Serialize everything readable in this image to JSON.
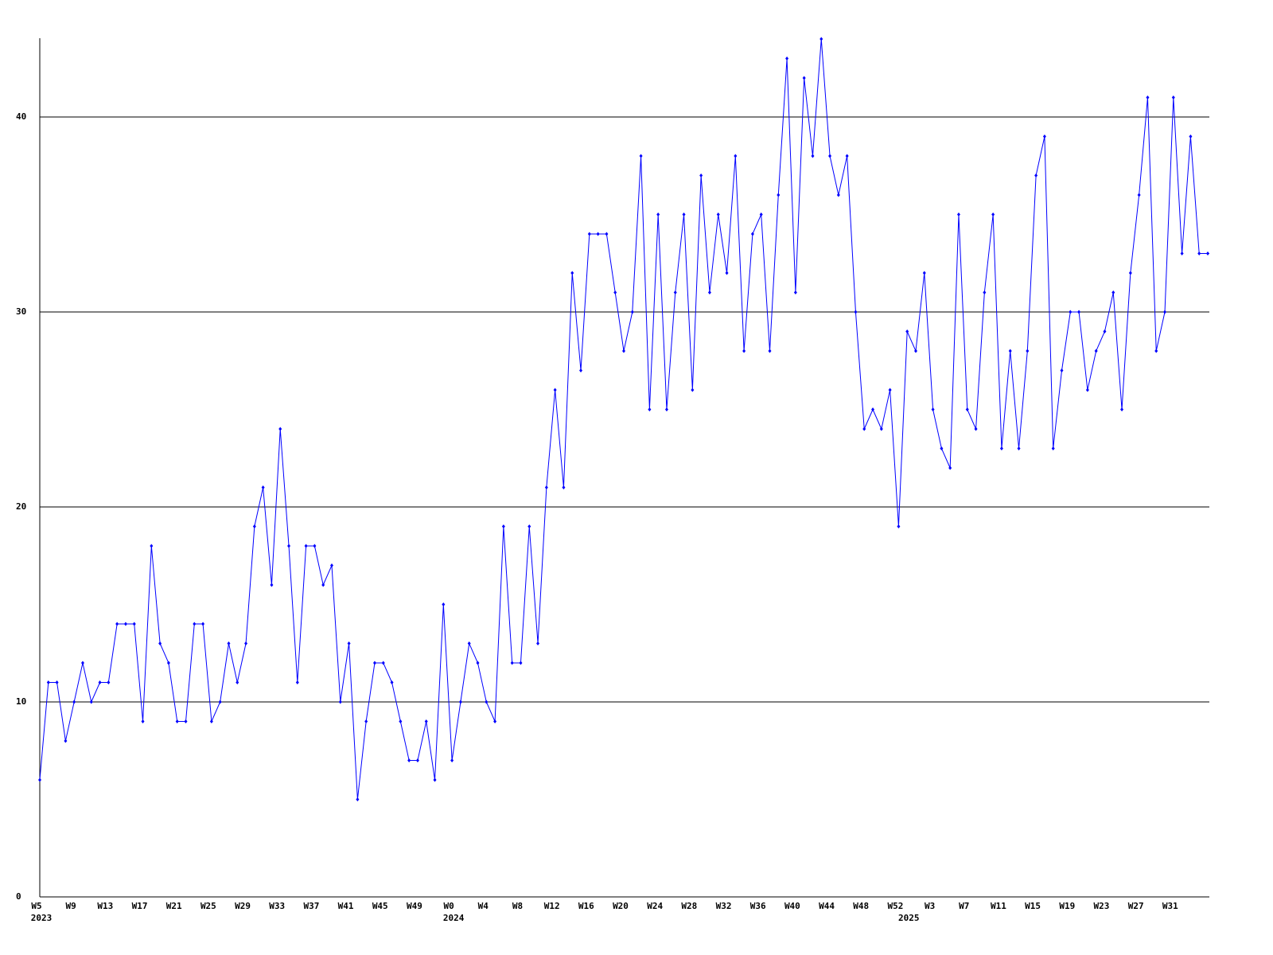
{
  "chart_data": {
    "type": "line",
    "categories": [
      "W5",
      null,
      null,
      null,
      "W9",
      null,
      null,
      null,
      "W13",
      null,
      null,
      null,
      "W17",
      null,
      null,
      null,
      "W21",
      null,
      null,
      null,
      "W25",
      null,
      null,
      null,
      "W29",
      null,
      null,
      null,
      "W33",
      null,
      null,
      null,
      "W37",
      null,
      null,
      null,
      "W41",
      null,
      null,
      null,
      "W45",
      null,
      null,
      null,
      "W49",
      null,
      null,
      null,
      "W0",
      null,
      null,
      null,
      "W4",
      null,
      null,
      null,
      "W8",
      null,
      null,
      null,
      "W12",
      null,
      null,
      null,
      "W16",
      null,
      null,
      null,
      "W20",
      null,
      null,
      null,
      "W24",
      null,
      null,
      null,
      "W28",
      null,
      null,
      null,
      "W32",
      null,
      null,
      null,
      "W36",
      null,
      null,
      null,
      "W40",
      null,
      null,
      null,
      "W44",
      null,
      null,
      null,
      "W48",
      null,
      null,
      null,
      "W52",
      null,
      null,
      null,
      "W3",
      null,
      null,
      null,
      "W7",
      null,
      null,
      null,
      "W11",
      null,
      null,
      null,
      "W15",
      null,
      null,
      null,
      "W19",
      null,
      null,
      null,
      "W23",
      null,
      null,
      null,
      "W27",
      null,
      null,
      null,
      "W31",
      null,
      null,
      null,
      null
    ],
    "x_year_labels": [
      "2023",
      null,
      null,
      null,
      null,
      null,
      null,
      null,
      null,
      null,
      null,
      null,
      null,
      null,
      null,
      null,
      null,
      null,
      null,
      null,
      null,
      null,
      null,
      null,
      null,
      null,
      null,
      null,
      null,
      null,
      null,
      null,
      null,
      null,
      null,
      null,
      null,
      null,
      null,
      null,
      null,
      null,
      null,
      null,
      null,
      null,
      null,
      null,
      "2024",
      null,
      null,
      null,
      null,
      null,
      null,
      null,
      null,
      null,
      null,
      null,
      null,
      null,
      null,
      null,
      null,
      null,
      null,
      null,
      null,
      null,
      null,
      null,
      null,
      null,
      null,
      null,
      null,
      null,
      null,
      null,
      null,
      null,
      null,
      null,
      null,
      null,
      null,
      null,
      null,
      null,
      null,
      null,
      null,
      null,
      null,
      null,
      null,
      null,
      null,
      null,
      null,
      "2025",
      null,
      null,
      null,
      null,
      null,
      null,
      null,
      null,
      null,
      null,
      null,
      null,
      null,
      null,
      null,
      null,
      null,
      null,
      null,
      null,
      null,
      null,
      null,
      null,
      null,
      null,
      null,
      null,
      null,
      null,
      null,
      null,
      null,
      null,
      null
    ],
    "series": [
      {
        "color": "#0000ff",
        "values": [
          6,
          11,
          11,
          8,
          10,
          12,
          10,
          11,
          11,
          14,
          14,
          14,
          9,
          18,
          13,
          12,
          9,
          9,
          14,
          14,
          9,
          10,
          13,
          11,
          13,
          19,
          21,
          16,
          24,
          18,
          11,
          18,
          18,
          16,
          17,
          10,
          13,
          5,
          9,
          12,
          12,
          11,
          9,
          7,
          7,
          9,
          6,
          15,
          7,
          10,
          13,
          12,
          10,
          9,
          19,
          12,
          12,
          19,
          13,
          21,
          26,
          21,
          32,
          27,
          34,
          34,
          34,
          31,
          28,
          30,
          38,
          25,
          35,
          25,
          31,
          35,
          26,
          37,
          31,
          35,
          32,
          38,
          28,
          34,
          35,
          28,
          36,
          43,
          31,
          42,
          38,
          44,
          38,
          36,
          38,
          30,
          24,
          25,
          24,
          26,
          19,
          29,
          28,
          32,
          25,
          23,
          22,
          35,
          25,
          24,
          31,
          35,
          23,
          28,
          23,
          28,
          37,
          39,
          23,
          27,
          30,
          30,
          26,
          28,
          29,
          31,
          25,
          32,
          36,
          41,
          28,
          30,
          41,
          33,
          39,
          33,
          33
        ]
      }
    ],
    "ylim": [
      0,
      44
    ],
    "yticks": [
      0,
      10,
      20,
      30,
      40
    ],
    "grid": true
  }
}
